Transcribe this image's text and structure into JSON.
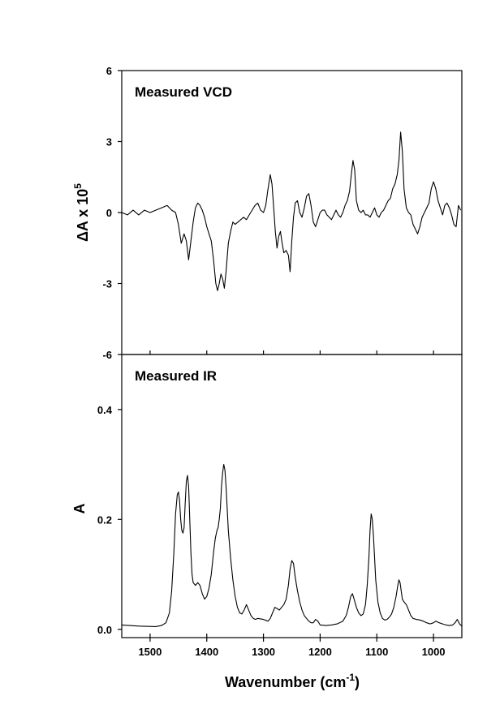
{
  "chart_data": [
    {
      "type": "line",
      "title": "Measured VCD",
      "ylabel_prefix": "ΔA x 10",
      "ylabel_exp": "5",
      "xlim": [
        1550,
        950
      ],
      "ylim": [
        -6,
        6
      ],
      "yticks": [
        6,
        3,
        0,
        -3,
        -6
      ],
      "ytick_labels": [
        "6",
        "3",
        "0",
        "-3",
        "-6"
      ],
      "series": [
        {
          "x": [
            1550,
            1540,
            1530,
            1520,
            1510,
            1500,
            1490,
            1480,
            1470,
            1462,
            1455,
            1450,
            1445,
            1440,
            1436,
            1432,
            1428,
            1424,
            1420,
            1416,
            1412,
            1408,
            1404,
            1400,
            1396,
            1392,
            1388,
            1384,
            1381,
            1378,
            1375,
            1372,
            1369,
            1366,
            1362,
            1358,
            1354,
            1350,
            1345,
            1340,
            1335,
            1330,
            1325,
            1320,
            1315,
            1310,
            1305,
            1300,
            1296,
            1292,
            1288,
            1285,
            1282,
            1279,
            1276,
            1273,
            1270,
            1267,
            1264,
            1260,
            1256,
            1253,
            1250,
            1247,
            1244,
            1240,
            1236,
            1232,
            1228,
            1224,
            1220,
            1216,
            1212,
            1208,
            1204,
            1200,
            1196,
            1192,
            1188,
            1184,
            1180,
            1176,
            1172,
            1168,
            1164,
            1160,
            1156,
            1152,
            1148,
            1145,
            1142,
            1139,
            1136,
            1132,
            1128,
            1124,
            1120,
            1116,
            1112,
            1108,
            1104,
            1100,
            1096,
            1092,
            1088,
            1084,
            1080,
            1076,
            1072,
            1068,
            1064,
            1061,
            1058,
            1055,
            1052,
            1048,
            1044,
            1040,
            1036,
            1032,
            1028,
            1024,
            1020,
            1016,
            1012,
            1008,
            1004,
            1000,
            996,
            992,
            988,
            984,
            980,
            976,
            972,
            968,
            964,
            960,
            956,
            952
          ],
          "values": [
            0,
            -0.1,
            0.1,
            -0.1,
            0.1,
            0,
            0.1,
            0.2,
            0.3,
            0.1,
            0,
            -0.5,
            -1.3,
            -0.9,
            -1.2,
            -2.0,
            -1.2,
            -0.4,
            0.2,
            0.4,
            0.3,
            0.1,
            -0.2,
            -0.6,
            -0.9,
            -1.2,
            -2.0,
            -3.0,
            -3.3,
            -3.0,
            -2.6,
            -2.8,
            -3.2,
            -2.5,
            -1.3,
            -0.8,
            -0.4,
            -0.5,
            -0.4,
            -0.3,
            -0.2,
            -0.3,
            -0.1,
            0.1,
            0.3,
            0.4,
            0.1,
            0,
            0.3,
            1.0,
            1.6,
            1.2,
            0.2,
            -0.8,
            -1.5,
            -1.0,
            -0.8,
            -1.3,
            -1.7,
            -1.6,
            -1.8,
            -2.5,
            -1.2,
            -0.2,
            0.4,
            0.5,
            0,
            -0.2,
            0.2,
            0.7,
            0.8,
            0.3,
            -0.4,
            -0.6,
            -0.3,
            0,
            0.1,
            0.1,
            -0.1,
            -0.2,
            -0.3,
            -0.1,
            0.1,
            -0.1,
            -0.2,
            0,
            0.3,
            0.5,
            0.9,
            1.6,
            2.2,
            1.8,
            0.5,
            0.1,
            0,
            0.1,
            -0.1,
            -0.1,
            -0.2,
            0,
            0.2,
            -0.1,
            -0.2,
            0,
            0.1,
            0.3,
            0.5,
            0.6,
            1.0,
            1.2,
            1.6,
            2.2,
            3.4,
            2.6,
            1.0,
            0.2,
            0,
            -0.1,
            -0.5,
            -0.7,
            -0.9,
            -0.6,
            -0.2,
            0,
            0.2,
            0.4,
            1.0,
            1.3,
            1.0,
            0.5,
            0.2,
            -0.1,
            0.3,
            0.4,
            0.2,
            -0.1,
            -0.5,
            -0.6,
            0.3,
            0.1
          ]
        }
      ]
    },
    {
      "type": "line",
      "title": "Measured IR",
      "ylabel": "A",
      "xlabel_prefix": "Wavenumber (cm",
      "xlabel_exp": "-1",
      "xlabel_suffix": ")",
      "xlim": [
        1550,
        950
      ],
      "ylim": [
        -0.015,
        0.5
      ],
      "yticks": [
        0.0,
        0.2,
        0.4
      ],
      "ytick_labels": [
        "0.0",
        "0.2",
        "0.4"
      ],
      "xticks": [
        1500,
        1400,
        1300,
        1200,
        1100,
        1000
      ],
      "xtick_labels": [
        "1500",
        "1400",
        "1300",
        "1200",
        "1100",
        "1000"
      ],
      "series": [
        {
          "x": [
            1550,
            1520,
            1490,
            1480,
            1472,
            1466,
            1462,
            1458,
            1455,
            1452,
            1450,
            1448,
            1446,
            1444,
            1442,
            1440,
            1438,
            1436,
            1434,
            1432,
            1430,
            1428,
            1426,
            1424,
            1420,
            1416,
            1412,
            1408,
            1404,
            1400,
            1396,
            1392,
            1388,
            1385,
            1382,
            1380,
            1378,
            1376,
            1374,
            1372,
            1370,
            1368,
            1366,
            1364,
            1362,
            1358,
            1354,
            1350,
            1346,
            1342,
            1338,
            1334,
            1330,
            1326,
            1322,
            1318,
            1314,
            1310,
            1300,
            1292,
            1288,
            1284,
            1280,
            1276,
            1272,
            1268,
            1264,
            1260,
            1256,
            1253,
            1250,
            1247,
            1244,
            1240,
            1236,
            1232,
            1228,
            1224,
            1220,
            1216,
            1212,
            1208,
            1204,
            1200,
            1190,
            1180,
            1170,
            1160,
            1154,
            1150,
            1146,
            1143,
            1140,
            1136,
            1132,
            1128,
            1124,
            1120,
            1117,
            1114,
            1112,
            1110,
            1108,
            1106,
            1104,
            1102,
            1098,
            1094,
            1090,
            1086,
            1082,
            1078,
            1074,
            1070,
            1066,
            1063,
            1061,
            1059,
            1057,
            1055,
            1052,
            1048,
            1044,
            1040,
            1036,
            1030,
            1024,
            1018,
            1012,
            1006,
            1000,
            996,
            990,
            984,
            978,
            972,
            966,
            962,
            958,
            954,
            950
          ],
          "values": [
            0.008,
            0.006,
            0.005,
            0.007,
            0.012,
            0.03,
            0.07,
            0.14,
            0.21,
            0.245,
            0.25,
            0.235,
            0.2,
            0.18,
            0.175,
            0.185,
            0.23,
            0.27,
            0.28,
            0.26,
            0.2,
            0.14,
            0.1,
            0.085,
            0.08,
            0.085,
            0.08,
            0.065,
            0.055,
            0.06,
            0.075,
            0.1,
            0.14,
            0.165,
            0.18,
            0.185,
            0.2,
            0.22,
            0.26,
            0.285,
            0.3,
            0.29,
            0.26,
            0.22,
            0.18,
            0.13,
            0.09,
            0.06,
            0.04,
            0.03,
            0.028,
            0.035,
            0.045,
            0.035,
            0.025,
            0.02,
            0.018,
            0.02,
            0.018,
            0.015,
            0.02,
            0.03,
            0.04,
            0.038,
            0.035,
            0.04,
            0.045,
            0.055,
            0.08,
            0.11,
            0.125,
            0.12,
            0.095,
            0.07,
            0.05,
            0.035,
            0.025,
            0.02,
            0.015,
            0.012,
            0.012,
            0.018,
            0.015,
            0.008,
            0.007,
            0.008,
            0.01,
            0.015,
            0.025,
            0.04,
            0.06,
            0.065,
            0.055,
            0.04,
            0.03,
            0.025,
            0.028,
            0.045,
            0.08,
            0.13,
            0.18,
            0.21,
            0.2,
            0.17,
            0.13,
            0.09,
            0.05,
            0.03,
            0.02,
            0.017,
            0.018,
            0.022,
            0.028,
            0.04,
            0.06,
            0.08,
            0.09,
            0.085,
            0.07,
            0.055,
            0.05,
            0.045,
            0.035,
            0.025,
            0.02,
            0.018,
            0.017,
            0.015,
            0.012,
            0.01,
            0.012,
            0.015,
            0.012,
            0.01,
            0.008,
            0.007,
            0.008,
            0.012,
            0.018,
            0.01,
            0.006
          ]
        }
      ]
    }
  ]
}
